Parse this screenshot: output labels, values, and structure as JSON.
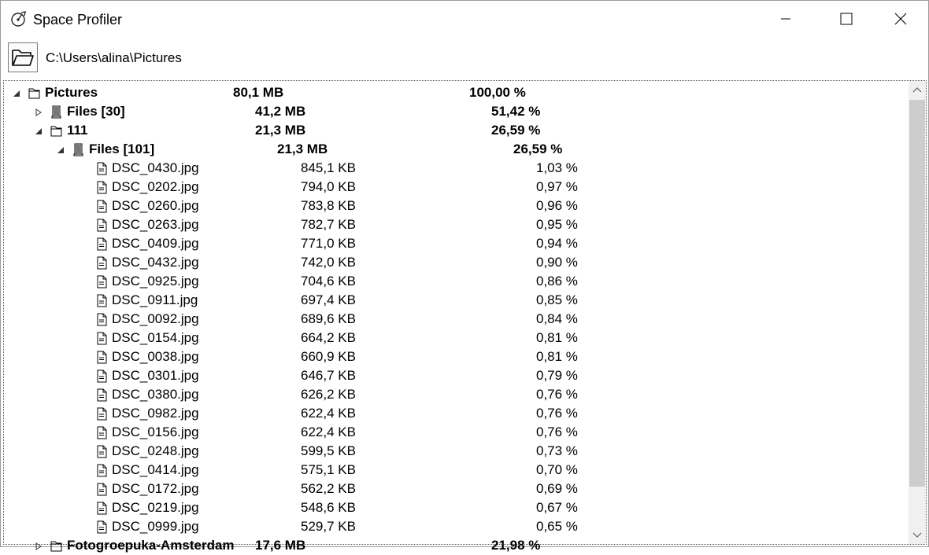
{
  "window": {
    "title": "Space Profiler",
    "icons": {
      "app": "profiler-icon",
      "minimize": "minimize-icon",
      "maximize": "maximize-icon",
      "close": "close-icon"
    }
  },
  "toolbar": {
    "open_icon": "folder-open-icon",
    "path": "C:\\Users\\alina\\Pictures"
  },
  "tree": {
    "rows": [
      {
        "level": 0,
        "expander": "expanded",
        "icon": "folder-icon",
        "name": "Pictures",
        "size": "80,1 MB",
        "percent": "100,00 %",
        "bold": true
      },
      {
        "level": 1,
        "expander": "collapsed",
        "icon": "files-icon",
        "name": "Files [30]",
        "size": "41,2 MB",
        "percent": "51,42 %",
        "bold": true
      },
      {
        "level": 1,
        "expander": "expanded",
        "icon": "folder-icon",
        "name": "111",
        "size": "21,3 MB",
        "percent": "26,59 %",
        "bold": true
      },
      {
        "level": 2,
        "expander": "expanded",
        "icon": "files-icon",
        "name": "Files [101]",
        "size": "21,3 MB",
        "percent": "26,59 %",
        "bold": true
      },
      {
        "level": 3,
        "expander": "none",
        "icon": "file-icon",
        "name": "DSC_0430.jpg",
        "size": "845,1 KB",
        "percent": "1,03 %",
        "bold": false
      },
      {
        "level": 3,
        "expander": "none",
        "icon": "file-icon",
        "name": "DSC_0202.jpg",
        "size": "794,0 KB",
        "percent": "0,97 %",
        "bold": false
      },
      {
        "level": 3,
        "expander": "none",
        "icon": "file-icon",
        "name": "DSC_0260.jpg",
        "size": "783,8 KB",
        "percent": "0,96 %",
        "bold": false
      },
      {
        "level": 3,
        "expander": "none",
        "icon": "file-icon",
        "name": "DSC_0263.jpg",
        "size": "782,7 KB",
        "percent": "0,95 %",
        "bold": false
      },
      {
        "level": 3,
        "expander": "none",
        "icon": "file-icon",
        "name": "DSC_0409.jpg",
        "size": "771,0 KB",
        "percent": "0,94 %",
        "bold": false
      },
      {
        "level": 3,
        "expander": "none",
        "icon": "file-icon",
        "name": "DSC_0432.jpg",
        "size": "742,0 KB",
        "percent": "0,90 %",
        "bold": false
      },
      {
        "level": 3,
        "expander": "none",
        "icon": "file-icon",
        "name": "DSC_0925.jpg",
        "size": "704,6 KB",
        "percent": "0,86 %",
        "bold": false
      },
      {
        "level": 3,
        "expander": "none",
        "icon": "file-icon",
        "name": "DSC_0911.jpg",
        "size": "697,4 KB",
        "percent": "0,85 %",
        "bold": false
      },
      {
        "level": 3,
        "expander": "none",
        "icon": "file-icon",
        "name": "DSC_0092.jpg",
        "size": "689,6 KB",
        "percent": "0,84 %",
        "bold": false
      },
      {
        "level": 3,
        "expander": "none",
        "icon": "file-icon",
        "name": "DSC_0154.jpg",
        "size": "664,2 KB",
        "percent": "0,81 %",
        "bold": false
      },
      {
        "level": 3,
        "expander": "none",
        "icon": "file-icon",
        "name": "DSC_0038.jpg",
        "size": "660,9 KB",
        "percent": "0,81 %",
        "bold": false
      },
      {
        "level": 3,
        "expander": "none",
        "icon": "file-icon",
        "name": "DSC_0301.jpg",
        "size": "646,7 KB",
        "percent": "0,79 %",
        "bold": false
      },
      {
        "level": 3,
        "expander": "none",
        "icon": "file-icon",
        "name": "DSC_0380.jpg",
        "size": "626,2 KB",
        "percent": "0,76 %",
        "bold": false
      },
      {
        "level": 3,
        "expander": "none",
        "icon": "file-icon",
        "name": "DSC_0982.jpg",
        "size": "622,4 KB",
        "percent": "0,76 %",
        "bold": false
      },
      {
        "level": 3,
        "expander": "none",
        "icon": "file-icon",
        "name": "DSC_0156.jpg",
        "size": "622,4 KB",
        "percent": "0,76 %",
        "bold": false
      },
      {
        "level": 3,
        "expander": "none",
        "icon": "file-icon",
        "name": "DSC_0248.jpg",
        "size": "599,5 KB",
        "percent": "0,73 %",
        "bold": false
      },
      {
        "level": 3,
        "expander": "none",
        "icon": "file-icon",
        "name": "DSC_0414.jpg",
        "size": "575,1 KB",
        "percent": "0,70 %",
        "bold": false
      },
      {
        "level": 3,
        "expander": "none",
        "icon": "file-icon",
        "name": "DSC_0172.jpg",
        "size": "562,2 KB",
        "percent": "0,69 %",
        "bold": false
      },
      {
        "level": 3,
        "expander": "none",
        "icon": "file-icon",
        "name": "DSC_0219.jpg",
        "size": "548,6 KB",
        "percent": "0,67 %",
        "bold": false
      },
      {
        "level": 3,
        "expander": "none",
        "icon": "file-icon",
        "name": "DSC_0999.jpg",
        "size": "529,7 KB",
        "percent": "0,65 %",
        "bold": false
      },
      {
        "level": 1,
        "expander": "collapsed",
        "icon": "folder-icon",
        "name": "Fotogroepuka-Amsterdam",
        "size": "17,6 MB",
        "percent": "21,98 %",
        "bold": true
      }
    ]
  },
  "scrollbar": {
    "up_icon": "scroll-up-icon",
    "down_icon": "scroll-down-icon"
  }
}
